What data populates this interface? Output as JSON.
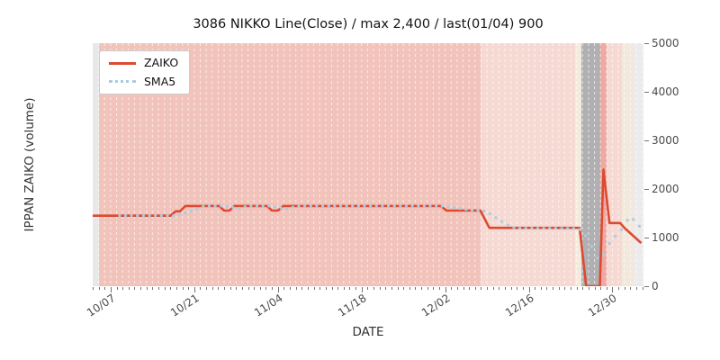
{
  "ui": {
    "title": "3086 NIKKO Line(Close) / max 2,400 / last(01/04) 900",
    "xlabel": "DATE",
    "ylabel": "IPPAN ZAIKO (volume)",
    "legend": [
      {
        "label": "ZAIKO",
        "style": "line",
        "color": "#dc4a31"
      },
      {
        "label": "SMA5",
        "style": "dots",
        "color": "#a9cce1"
      }
    ]
  },
  "chart_data": {
    "type": "line",
    "title": "3086 NIKKO Line(Close) / max 2,400 / last(01/04) 900",
    "xlabel": "DATE",
    "ylabel": "IPPAN ZAIKO (volume)",
    "ylim": [
      0,
      5000
    ],
    "y_ticks": [
      0,
      1000,
      2000,
      3000,
      4000,
      5000
    ],
    "x_span_days": 92.2,
    "x_start_date": "10/04",
    "x_ticks": [
      {
        "label": "10/07",
        "day": 3
      },
      {
        "label": "10/21",
        "day": 17
      },
      {
        "label": "11/04",
        "day": 31
      },
      {
        "label": "11/18",
        "day": 45
      },
      {
        "label": "12/02",
        "day": 59
      },
      {
        "label": "12/16",
        "day": 73
      },
      {
        "label": "12/30",
        "day": 87
      }
    ],
    "max_value": 2400,
    "last_value": 900,
    "last_date": "01/04",
    "series": [
      {
        "name": "ZAIKO",
        "color": "#dc4a31",
        "style": "solid",
        "width": 2.6,
        "points": [
          [
            0,
            1450
          ],
          [
            13,
            1450
          ],
          [
            13.9,
            1540
          ],
          [
            14.6,
            1540
          ],
          [
            15.5,
            1650
          ],
          [
            21.2,
            1650
          ],
          [
            22,
            1555
          ],
          [
            22.9,
            1555
          ],
          [
            23.7,
            1650
          ],
          [
            29.2,
            1650
          ],
          [
            30,
            1555
          ],
          [
            31,
            1555
          ],
          [
            31.9,
            1650
          ],
          [
            58.3,
            1650
          ],
          [
            59.2,
            1555
          ],
          [
            64.9,
            1555
          ],
          [
            66.4,
            1200
          ],
          [
            81.5,
            1200
          ],
          [
            82.6,
            0
          ],
          [
            84.9,
            0
          ],
          [
            85.5,
            2400
          ],
          [
            86.5,
            1300
          ],
          [
            88.3,
            1300
          ],
          [
            89,
            1200
          ],
          [
            91.7,
            900
          ]
        ]
      },
      {
        "name": "SMA5",
        "color": "#a9cce1",
        "style": "dotted",
        "width": 3.2,
        "points": [
          [
            4.5,
            1450
          ],
          [
            13.5,
            1450
          ],
          [
            14.5,
            1470
          ],
          [
            15.5,
            1500
          ],
          [
            16.5,
            1545
          ],
          [
            17.5,
            1600
          ],
          [
            18.5,
            1645
          ],
          [
            21.5,
            1650
          ],
          [
            23,
            1635
          ],
          [
            24.2,
            1595
          ],
          [
            25.5,
            1635
          ],
          [
            26.5,
            1650
          ],
          [
            29.8,
            1650
          ],
          [
            31.3,
            1615
          ],
          [
            32.5,
            1600
          ],
          [
            33.8,
            1635
          ],
          [
            34.8,
            1650
          ],
          [
            58.4,
            1650
          ],
          [
            60,
            1630
          ],
          [
            62,
            1585
          ],
          [
            63.5,
            1560
          ],
          [
            65.8,
            1545
          ],
          [
            67,
            1450
          ],
          [
            68,
            1370
          ],
          [
            69,
            1290
          ],
          [
            70,
            1225
          ],
          [
            71,
            1195
          ],
          [
            81.3,
            1190
          ],
          [
            82.4,
            1060
          ],
          [
            83.5,
            820
          ],
          [
            84.6,
            555
          ],
          [
            85.6,
            660
          ],
          [
            86.5,
            880
          ],
          [
            87.5,
            1030
          ],
          [
            88.5,
            1165
          ],
          [
            89.3,
            1310
          ],
          [
            89.9,
            1455
          ],
          [
            90.8,
            1330
          ],
          [
            91.5,
            1235
          ]
        ]
      }
    ],
    "background_bands": [
      {
        "from_day": 0,
        "to_day": 1.05,
        "color": "#e8e8e8"
      },
      {
        "from_day": 1.05,
        "to_day": 65,
        "color": "#f1c3bb"
      },
      {
        "from_day": 65,
        "to_day": 80.7,
        "color": "#f6d9d3"
      },
      {
        "from_day": 80.7,
        "to_day": 81.75,
        "color": "#f5ebdd"
      },
      {
        "from_day": 81.75,
        "to_day": 84.9,
        "color": "#b0b0b3"
      },
      {
        "from_day": 84.9,
        "to_day": 85.95,
        "color": "#efa9a3"
      },
      {
        "from_day": 85.95,
        "to_day": 88.65,
        "color": "#f6d9d3"
      },
      {
        "from_day": 88.65,
        "to_day": 90.6,
        "color": "#f2e8dc"
      },
      {
        "from_day": 90.6,
        "to_day": 92.2,
        "color": "#eceaea"
      }
    ],
    "day_grid": {
      "visible": true,
      "color": "rgba(255,255,255,0.62)",
      "dash": "3 3"
    }
  }
}
